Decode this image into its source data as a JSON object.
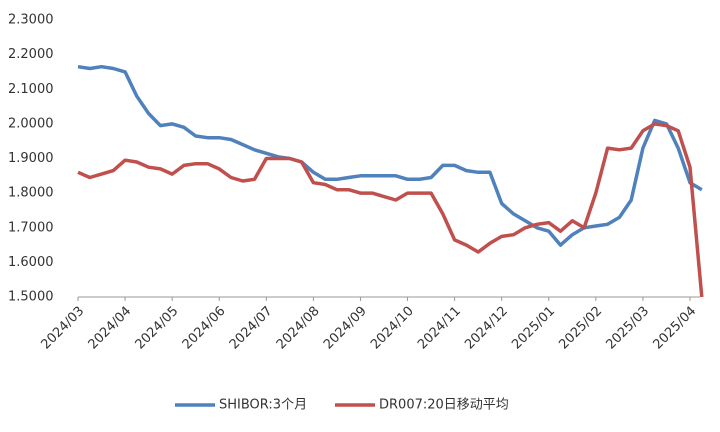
{
  "chart_data": {
    "type": "line",
    "categories": [
      "2024/03",
      null,
      null,
      null,
      "2024/04",
      null,
      null,
      null,
      "2024/05",
      null,
      null,
      null,
      "2024/06",
      null,
      null,
      null,
      "2024/07",
      null,
      null,
      null,
      "2024/08",
      null,
      null,
      null,
      "2024/09",
      null,
      null,
      null,
      "2024/10",
      null,
      null,
      null,
      "2024/11",
      null,
      null,
      null,
      "2024/12",
      null,
      null,
      null,
      "2025/01",
      null,
      null,
      null,
      "2025/02",
      null,
      null,
      null,
      "2025/03",
      null,
      null,
      null,
      "2025/04",
      null
    ],
    "series": [
      {
        "name": "SHIBOR:3个月",
        "color": "#4f81bd",
        "values": [
          2.165,
          2.16,
          2.165,
          2.16,
          2.15,
          2.08,
          2.03,
          1.995,
          2.0,
          1.99,
          1.965,
          1.96,
          1.96,
          1.955,
          1.94,
          1.925,
          1.915,
          1.905,
          1.9,
          1.89,
          1.86,
          1.84,
          1.84,
          1.845,
          1.85,
          1.85,
          1.85,
          1.85,
          1.84,
          1.84,
          1.845,
          1.88,
          1.88,
          1.865,
          1.86,
          1.86,
          1.77,
          1.74,
          1.72,
          1.7,
          1.69,
          1.65,
          1.68,
          1.7,
          1.705,
          1.71,
          1.73,
          1.78,
          1.93,
          2.01,
          2.0,
          1.93,
          1.83,
          1.81
        ]
      },
      {
        "name": "DR007:20日移动平均",
        "color": "#c0504d",
        "values": [
          1.86,
          1.845,
          1.855,
          1.865,
          1.895,
          1.89,
          1.875,
          1.87,
          1.855,
          1.88,
          1.885,
          1.885,
          1.87,
          1.845,
          1.835,
          1.84,
          1.9,
          1.9,
          1.9,
          1.89,
          1.83,
          1.825,
          1.81,
          1.81,
          1.8,
          1.8,
          1.79,
          1.78,
          1.8,
          1.8,
          1.8,
          1.74,
          1.665,
          1.65,
          1.63,
          1.655,
          1.675,
          1.68,
          1.7,
          1.71,
          1.715,
          1.69,
          1.72,
          1.7,
          1.8,
          1.93,
          1.925,
          1.93,
          1.98,
          2.0,
          1.995,
          1.98,
          1.875,
          1.5
        ]
      }
    ],
    "ylim": [
      1.5,
      2.3
    ],
    "yticks": [
      {
        "value": 1.5,
        "label": "1.5000"
      },
      {
        "value": 1.6,
        "label": "1.6000"
      },
      {
        "value": 1.7,
        "label": "1.7000"
      },
      {
        "value": 1.8,
        "label": "1.8000"
      },
      {
        "value": 1.9,
        "label": "1.9000"
      },
      {
        "value": 2.0,
        "label": "2.0000"
      },
      {
        "value": 2.1,
        "label": "2.1000"
      },
      {
        "value": 2.2,
        "label": "2.2000"
      },
      {
        "value": 2.3,
        "label": "2.3000"
      }
    ],
    "grid": false
  }
}
